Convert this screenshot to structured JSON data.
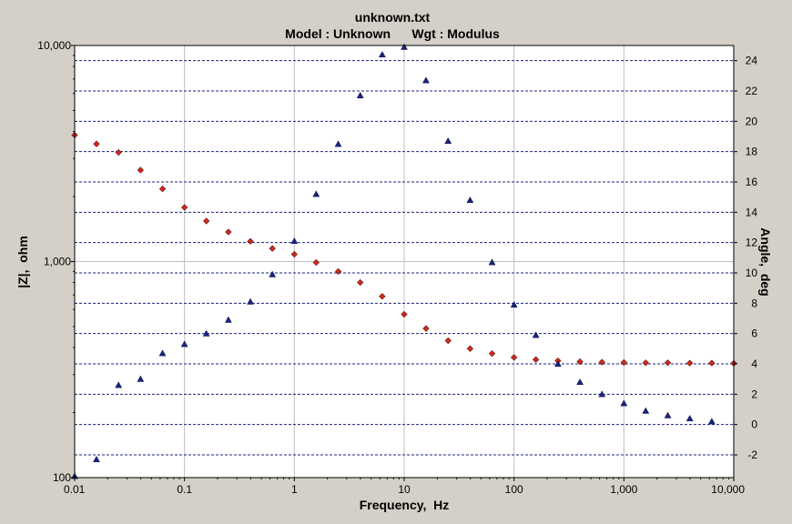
{
  "chart_data": {
    "type": "scatter",
    "title": "unknown.txt",
    "subtitle": "Model : Unknown      Wgt : Modulus",
    "xlabel": "Frequency,  Hz",
    "ylabel_left": "|Z|,  ohm",
    "ylabel_right": "Angle,  deg",
    "x_scale": "log",
    "y_left_scale": "log",
    "xlim": [
      0.01,
      10000
    ],
    "ylim_left": [
      100,
      10000
    ],
    "ylim_right": [
      -3.5,
      25
    ],
    "x_ticks": [
      {
        "value": 0.01,
        "label": "0.01"
      },
      {
        "value": 0.1,
        "label": "0.1"
      },
      {
        "value": 1,
        "label": "1"
      },
      {
        "value": 10,
        "label": "10"
      },
      {
        "value": 100,
        "label": "100"
      },
      {
        "value": 1000,
        "label": "1,000"
      },
      {
        "value": 10000,
        "label": "10,000"
      }
    ],
    "y_left_ticks": [
      {
        "value": 100,
        "label": "100"
      },
      {
        "value": 1000,
        "label": "1,000"
      },
      {
        "value": 10000,
        "label": "10,000"
      }
    ],
    "y_right_ticks": [
      {
        "value": -2,
        "label": "-2"
      },
      {
        "value": 0,
        "label": "0"
      },
      {
        "value": 2,
        "label": "2"
      },
      {
        "value": 4,
        "label": "4"
      },
      {
        "value": 6,
        "label": "6"
      },
      {
        "value": 8,
        "label": "8"
      },
      {
        "value": 10,
        "label": "10"
      },
      {
        "value": 12,
        "label": "12"
      },
      {
        "value": 14,
        "label": "14"
      },
      {
        "value": 16,
        "label": "16"
      },
      {
        "value": 18,
        "label": "18"
      },
      {
        "value": 20,
        "label": "20"
      },
      {
        "value": 22,
        "label": "22"
      },
      {
        "value": 24,
        "label": "24"
      }
    ],
    "grid": true,
    "series": [
      {
        "axis": "left",
        "marker": "diamond",
        "color": "#d42a1e",
        "x": [
          0.01,
          0.0158,
          0.0251,
          0.0398,
          0.0631,
          0.1,
          0.158,
          0.251,
          0.398,
          0.631,
          1,
          1.58,
          2.51,
          3.98,
          6.31,
          10,
          15.8,
          25.1,
          39.8,
          63.1,
          100,
          158,
          251,
          398,
          631,
          1000,
          1580,
          2510,
          3980,
          6310,
          10000
        ],
        "y": [
          3850,
          3500,
          3200,
          2650,
          2170,
          1780,
          1540,
          1370,
          1240,
          1150,
          1080,
          990,
          900,
          800,
          690,
          570,
          490,
          430,
          395,
          375,
          360,
          352,
          347,
          344,
          342,
          341,
          340,
          340,
          339,
          339,
          338
        ]
      },
      {
        "axis": "right",
        "marker": "triangle",
        "color": "#1a237e",
        "x": [
          0.01,
          0.0158,
          0.0251,
          0.0398,
          0.0631,
          0.1,
          0.158,
          0.251,
          0.398,
          0.631,
          1,
          1.58,
          2.51,
          3.98,
          6.31,
          10,
          15.8,
          25.1,
          39.8,
          63.1,
          100,
          158,
          251,
          398,
          631,
          1000,
          1580,
          2510,
          3980,
          6310
        ],
        "y": [
          -3.4,
          -2.3,
          2.6,
          3.0,
          4.7,
          5.3,
          6.0,
          6.9,
          8.1,
          9.9,
          12.1,
          15.2,
          18.5,
          21.7,
          24.4,
          24.9,
          22.7,
          18.7,
          14.8,
          10.7,
          7.9,
          5.9,
          4.0,
          2.8,
          2.0,
          1.4,
          0.9,
          0.6,
          0.4,
          0.2
        ]
      }
    ]
  }
}
